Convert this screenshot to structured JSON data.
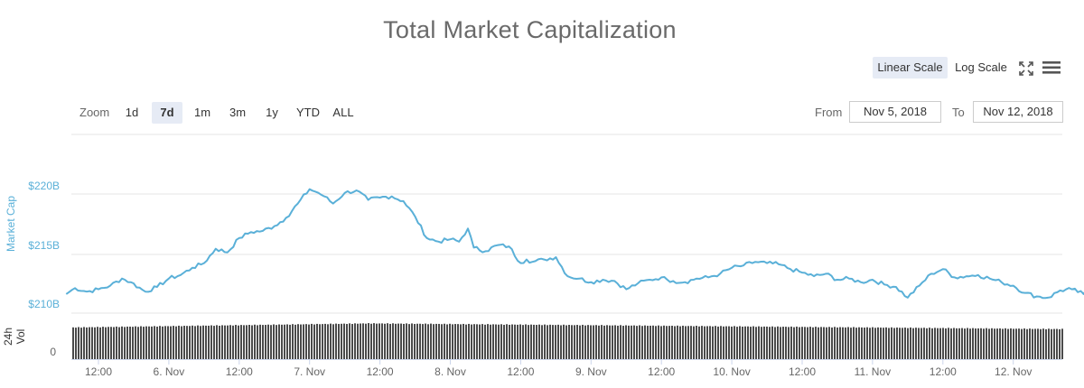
{
  "title": "Total Market Capitalization",
  "scale": {
    "linear": "Linear Scale",
    "log": "Log Scale",
    "selected": "linear"
  },
  "zoom": {
    "label": "Zoom",
    "buttons": [
      "1d",
      "7d",
      "1m",
      "3m",
      "1y",
      "YTD",
      "ALL"
    ],
    "active": "7d"
  },
  "range": {
    "from_label": "From",
    "from_value": "Nov 5, 2018",
    "to_label": "To",
    "to_value": "Nov 12, 2018"
  },
  "icons": {
    "fullscreen": "fullscreen-icon",
    "menu": "hamburger-menu-icon"
  },
  "colors": {
    "line": "#5ab0d8",
    "volume": "#4a4a4a",
    "axis_text": "#5ab0d8",
    "grid": "#e6e6e6"
  },
  "chart_data": {
    "type": "line",
    "title": "Total Market Capitalization",
    "ylabel": "Market Cap",
    "y_ticks": [
      "$220B",
      "$215B",
      "$210B"
    ],
    "ylim": [
      210,
      220.5
    ],
    "x_ticks": [
      "12:00",
      "6. Nov",
      "12:00",
      "7. Nov",
      "12:00",
      "8. Nov",
      "12:00",
      "9. Nov",
      "12:00",
      "10. Nov",
      "12:00",
      "11. Nov",
      "12:00",
      "12. Nov"
    ],
    "x_start_hours_before_first_tick": 5.5,
    "x_end_hours_after_last_tick": 11.5,
    "series": [
      {
        "name": "Market Cap",
        "unit": "billion USD",
        "hours_since_first_tick": [
          -5.5,
          -4,
          -2,
          0,
          2,
          4,
          5.5,
          8,
          10,
          12,
          14,
          16,
          18,
          20,
          22,
          24,
          26,
          28,
          30,
          32,
          34,
          36,
          37.5,
          38.5,
          40,
          42,
          44,
          46,
          48,
          50,
          52,
          54,
          56,
          58,
          60,
          61.5,
          63,
          64,
          66,
          68,
          70,
          72,
          73,
          74,
          76,
          78,
          80,
          82,
          84,
          86,
          88,
          90,
          92,
          94,
          96,
          97,
          98,
          100,
          102,
          104,
          106,
          108,
          110,
          112,
          114,
          116,
          118,
          120,
          122,
          124,
          126,
          128,
          130,
          132,
          134,
          136,
          138,
          140,
          142,
          144,
          146,
          148,
          150,
          152,
          154,
          156,
          158,
          160,
          162,
          164,
          166,
          168,
          170,
          172,
          174,
          176,
          178,
          180,
          182,
          184,
          186,
          187.5
        ],
        "values": [
          211.6,
          212.1,
          211.8,
          212.0,
          212.3,
          212.9,
          212.6,
          211.8,
          212.2,
          212.9,
          213.2,
          213.8,
          214.2,
          215.4,
          215.1,
          216.3,
          216.8,
          216.9,
          217.3,
          218.0,
          219.2,
          220.4,
          220.1,
          219.8,
          219.2,
          220.1,
          220.3,
          219.5,
          219.7,
          219.8,
          219.4,
          218.1,
          216.3,
          216.0,
          216.2,
          216.0,
          217.1,
          215.5,
          215.2,
          215.7,
          215.6,
          214.2,
          214.5,
          214.3,
          214.5,
          214.7,
          213.1,
          212.9,
          212.6,
          212.8,
          212.7,
          212.0,
          212.5,
          212.8,
          213.0,
          212.8,
          212.7,
          212.6,
          212.9,
          213.0,
          213.3,
          213.8,
          214.0,
          214.3,
          214.2,
          214.1,
          213.7,
          213.4,
          213.1,
          213.3,
          212.8,
          212.9,
          212.6,
          212.8,
          212.4,
          212.2,
          211.3,
          212.3,
          213.3,
          213.7,
          213.0,
          213.1,
          213.2,
          212.9,
          212.6,
          212.3,
          211.7,
          211.4,
          211.3,
          211.9,
          212.0,
          211.6,
          212.8,
          213.5,
          213.2,
          213.0,
          212.9,
          212.7,
          212.8,
          212.6,
          212.5,
          212.7,
          212.5,
          212.6,
          212.7
        ]
      }
    ],
    "volume": {
      "name": "24h Vol",
      "y_tick": "0",
      "relative_level_start": 0.78,
      "relative_level_peak": 0.88,
      "relative_level_end": 0.74
    }
  }
}
